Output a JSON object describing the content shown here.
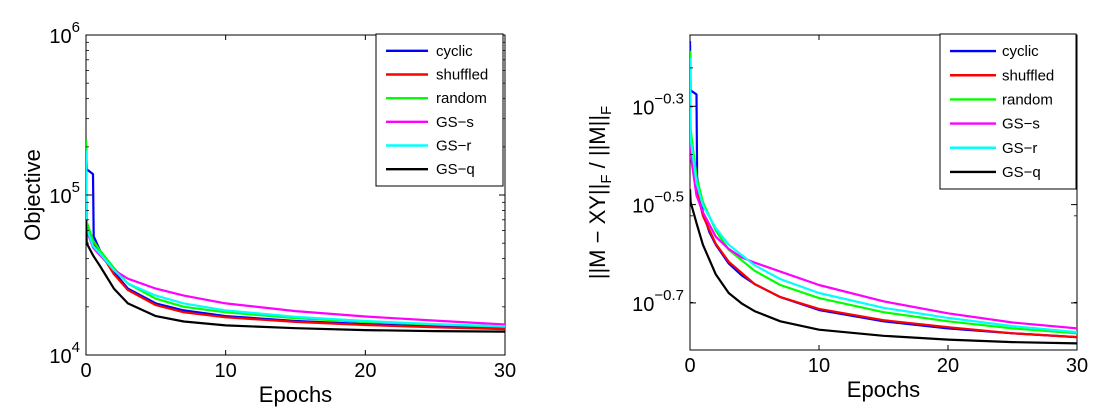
{
  "chart_data": [
    {
      "type": "line",
      "xlabel": "Epochs",
      "ylabel": "Objective",
      "xlim": [
        0,
        30
      ],
      "ylim": [
        10000,
        1000000
      ],
      "yscale": "log",
      "x_ticks": [
        "0",
        "10",
        "20",
        "30"
      ],
      "y_ticks": [
        {
          "base": "10",
          "exp": "4",
          "value": 10000
        },
        {
          "base": "10",
          "exp": "5",
          "value": 100000
        },
        {
          "base": "10",
          "exp": "6",
          "value": 1000000
        }
      ],
      "legend_position": "top-right",
      "grid": false,
      "series": [
        {
          "name": "cyclic",
          "color": "#0000ff",
          "points": [
            [
              0,
              200000
            ],
            [
              0.05,
              145000
            ],
            [
              0.5,
              135000
            ],
            [
              0.55,
              55000
            ],
            [
              1,
              45000
            ],
            [
              2,
              33000
            ],
            [
              3,
              26000
            ],
            [
              5,
              21000
            ],
            [
              7,
              19000
            ],
            [
              10,
              17500
            ],
            [
              15,
              16300
            ],
            [
              20,
              15600
            ],
            [
              25,
              15100
            ],
            [
              30,
              14700
            ]
          ]
        },
        {
          "name": "shuffled",
          "color": "#ff0000",
          "points": [
            [
              0,
              210000
            ],
            [
              0.05,
              62000
            ],
            [
              0.5,
              50000
            ],
            [
              1,
              44000
            ],
            [
              2,
              32000
            ],
            [
              3,
              25500
            ],
            [
              5,
              20500
            ],
            [
              7,
              18500
            ],
            [
              10,
              17200
            ],
            [
              15,
              16100
            ],
            [
              20,
              15400
            ],
            [
              25,
              14900
            ],
            [
              30,
              14500
            ]
          ]
        },
        {
          "name": "random",
          "color": "#00ff00",
          "points": [
            [
              0,
              220000
            ],
            [
              0.05,
              68000
            ],
            [
              0.5,
              52000
            ],
            [
              1,
              45000
            ],
            [
              2,
              35000
            ],
            [
              3,
              28000
            ],
            [
              5,
              22500
            ],
            [
              7,
              20000
            ],
            [
              10,
              18500
            ],
            [
              15,
              17000
            ],
            [
              20,
              16100
            ],
            [
              25,
              15500
            ],
            [
              30,
              15000
            ]
          ]
        },
        {
          "name": "GS−s",
          "color": "#ff00ff",
          "points": [
            [
              0,
              180000
            ],
            [
              0.05,
              60000
            ],
            [
              0.5,
              47000
            ],
            [
              1,
              42000
            ],
            [
              2,
              34000
            ],
            [
              3,
              30000
            ],
            [
              5,
              26000
            ],
            [
              7,
              23500
            ],
            [
              10,
              21000
            ],
            [
              15,
              18800
            ],
            [
              20,
              17400
            ],
            [
              25,
              16400
            ],
            [
              30,
              15500
            ]
          ]
        },
        {
          "name": "GS−r",
          "color": "#00ffff",
          "points": [
            [
              0,
              190000
            ],
            [
              0.05,
              62000
            ],
            [
              0.5,
              48000
            ],
            [
              1,
              43000
            ],
            [
              2,
              34000
            ],
            [
              3,
              28000
            ],
            [
              5,
              23500
            ],
            [
              7,
              21000
            ],
            [
              10,
              19000
            ],
            [
              15,
              17300
            ],
            [
              20,
              16300
            ],
            [
              25,
              15600
            ],
            [
              30,
              15100
            ]
          ]
        },
        {
          "name": "GS−q",
          "color": "#000000",
          "points": [
            [
              0,
              70000
            ],
            [
              0.05,
              50000
            ],
            [
              0.5,
              42000
            ],
            [
              1,
              36000
            ],
            [
              2,
              26000
            ],
            [
              3,
              21000
            ],
            [
              5,
              17500
            ],
            [
              7,
              16200
            ],
            [
              10,
              15300
            ],
            [
              15,
              14700
            ],
            [
              20,
              14300
            ],
            [
              25,
              14100
            ],
            [
              30,
              14000
            ]
          ]
        }
      ]
    },
    {
      "type": "line",
      "xlabel": "Epochs",
      "ylabel": "||M − XY||_F / ||M||_F",
      "ylabel_parts": [
        {
          "text": "||M − XY||",
          "sub": false
        },
        {
          "text": "F",
          "sub": true
        },
        {
          "text": " / ||M||",
          "sub": false
        },
        {
          "text": "F",
          "sub": true
        }
      ],
      "xlim": [
        0,
        30
      ],
      "ylim": [
        0.16,
        0.7
      ],
      "yscale": "log",
      "x_ticks": [
        "0",
        "10",
        "20",
        "30"
      ],
      "y_ticks": [
        {
          "base": "10",
          "exp": "−0.3",
          "value": 0.5012
        },
        {
          "base": "10",
          "exp": "−0.5",
          "value": 0.3162
        },
        {
          "base": "10",
          "exp": "−0.7",
          "value": 0.1995
        }
      ],
      "legend_position": "top-right",
      "grid": false,
      "series": [
        {
          "name": "cyclic",
          "color": "#0000ff",
          "points": [
            [
              0,
              0.68
            ],
            [
              0.05,
              0.54
            ],
            [
              0.5,
              0.53
            ],
            [
              0.55,
              0.36
            ],
            [
              1,
              0.305
            ],
            [
              1.5,
              0.278
            ],
            [
              2,
              0.262
            ],
            [
              3,
              0.24
            ],
            [
              4,
              0.227
            ],
            [
              5,
              0.218
            ],
            [
              7,
              0.205
            ],
            [
              10,
              0.193
            ],
            [
              15,
              0.183
            ],
            [
              20,
              0.177
            ],
            [
              25,
              0.173
            ],
            [
              30,
              0.17
            ]
          ]
        },
        {
          "name": "shuffled",
          "color": "#ff0000",
          "points": [
            [
              0,
              0.62
            ],
            [
              0.05,
              0.42
            ],
            [
              0.5,
              0.34
            ],
            [
              1,
              0.3
            ],
            [
              2,
              0.263
            ],
            [
              3,
              0.242
            ],
            [
              5,
              0.218
            ],
            [
              7,
              0.205
            ],
            [
              10,
              0.194
            ],
            [
              15,
              0.184
            ],
            [
              20,
              0.178
            ],
            [
              25,
              0.173
            ],
            [
              30,
              0.17
            ]
          ]
        },
        {
          "name": "random",
          "color": "#00ff00",
          "points": [
            [
              0,
              0.65
            ],
            [
              0.05,
              0.45
            ],
            [
              0.5,
              0.36
            ],
            [
              1,
              0.32
            ],
            [
              2,
              0.28
            ],
            [
              3,
              0.256
            ],
            [
              5,
              0.232
            ],
            [
              7,
              0.217
            ],
            [
              10,
              0.204
            ],
            [
              15,
              0.191
            ],
            [
              20,
              0.183
            ],
            [
              25,
              0.177
            ],
            [
              30,
              0.173
            ]
          ]
        },
        {
          "name": "GS−s",
          "color": "#ff00ff",
          "points": [
            [
              0,
              0.6
            ],
            [
              0.05,
              0.4
            ],
            [
              0.5,
              0.33
            ],
            [
              1,
              0.305
            ],
            [
              2,
              0.272
            ],
            [
              3,
              0.257
            ],
            [
              4,
              0.247
            ],
            [
              5,
              0.241
            ],
            [
              7,
              0.231
            ],
            [
              10,
              0.217
            ],
            [
              15,
              0.201
            ],
            [
              20,
              0.19
            ],
            [
              25,
              0.182
            ],
            [
              30,
              0.177
            ]
          ]
        },
        {
          "name": "GS−r",
          "color": "#00ffff",
          "points": [
            [
              0,
              0.63
            ],
            [
              0.05,
              0.43
            ],
            [
              0.5,
              0.35
            ],
            [
              1,
              0.315
            ],
            [
              2,
              0.283
            ],
            [
              3,
              0.262
            ],
            [
              5,
              0.238
            ],
            [
              7,
              0.223
            ],
            [
              10,
              0.209
            ],
            [
              15,
              0.195
            ],
            [
              20,
              0.186
            ],
            [
              25,
              0.179
            ],
            [
              30,
              0.174
            ]
          ]
        },
        {
          "name": "GS−q",
          "color": "#000000",
          "points": [
            [
              0,
              0.34
            ],
            [
              0.05,
              0.32
            ],
            [
              0.5,
              0.29
            ],
            [
              1,
              0.262
            ],
            [
              2,
              0.228
            ],
            [
              3,
              0.209
            ],
            [
              4,
              0.199
            ],
            [
              5,
              0.192
            ],
            [
              7,
              0.183
            ],
            [
              10,
              0.176
            ],
            [
              15,
              0.171
            ],
            [
              20,
              0.168
            ],
            [
              25,
              0.166
            ],
            [
              30,
              0.165
            ]
          ]
        }
      ]
    }
  ]
}
